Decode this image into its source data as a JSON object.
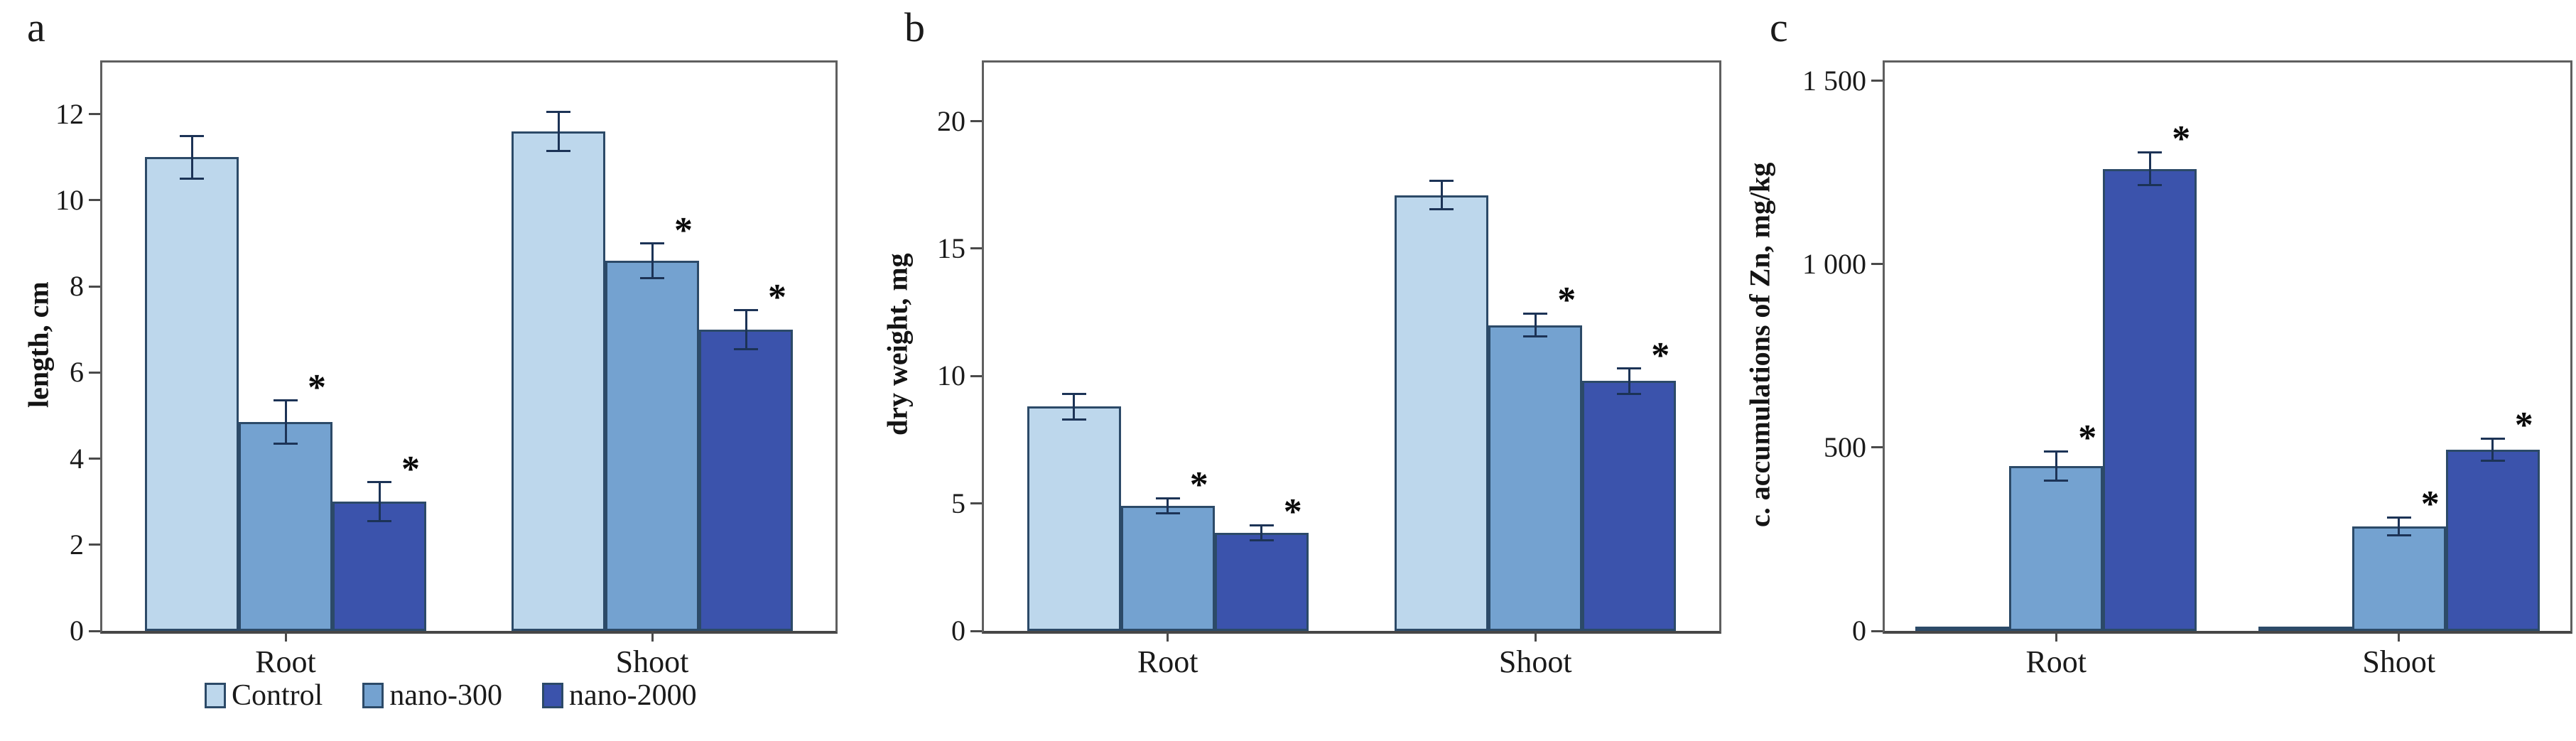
{
  "colors": {
    "control": "#bdd7ec",
    "nano300": "#74a2d0",
    "nano2000": "#3b53ac",
    "bar_border": "#2c4a68",
    "error_bar": "#1c3356",
    "axis": "#4a4a4a",
    "text": "#141414",
    "background": "#ffffff"
  },
  "legend": {
    "items": [
      {
        "label": "Control",
        "color": "#bdd7ec"
      },
      {
        "label": "nano-300",
        "color": "#74a2d0"
      },
      {
        "label": "nano-2000",
        "color": "#3b53ac"
      }
    ]
  },
  "chart_data": [
    {
      "type": "bar",
      "panel_label": "a",
      "ylabel": "length, cm",
      "xlabel": "",
      "categories": [
        "Root",
        "Shoot"
      ],
      "ylim": [
        0,
        13.2
      ],
      "yticks": [
        0,
        2,
        4,
        6,
        8,
        10,
        12
      ],
      "ytick_labels": [
        "0",
        "2",
        "4",
        "6",
        "8",
        "10",
        "12"
      ],
      "grid": false,
      "legend_position": "bottom",
      "series": [
        {
          "name": "Control",
          "color": "#bdd7ec",
          "values": [
            11.0,
            11.6
          ],
          "errors": [
            0.5,
            0.45
          ],
          "significant": [
            false,
            false
          ]
        },
        {
          "name": "nano-300",
          "color": "#74a2d0",
          "values": [
            4.85,
            8.6
          ],
          "errors": [
            0.5,
            0.4
          ],
          "significant": [
            true,
            true
          ]
        },
        {
          "name": "nano-2000",
          "color": "#3b53ac",
          "values": [
            3.0,
            7.0
          ],
          "errors": [
            0.45,
            0.45
          ],
          "significant": [
            true,
            true
          ]
        }
      ]
    },
    {
      "type": "bar",
      "panel_label": "b",
      "ylabel": "dry weight, mg",
      "xlabel": "",
      "categories": [
        "Root",
        "Shoot"
      ],
      "ylim": [
        0,
        22.3
      ],
      "yticks": [
        0,
        5,
        10,
        15,
        20
      ],
      "ytick_labels": [
        "0",
        "5",
        "10",
        "15",
        "20"
      ],
      "grid": false,
      "legend_position": "none",
      "series": [
        {
          "name": "Control",
          "color": "#bdd7ec",
          "values": [
            8.8,
            17.1
          ],
          "errors": [
            0.5,
            0.55
          ],
          "significant": [
            false,
            false
          ]
        },
        {
          "name": "nano-300",
          "color": "#74a2d0",
          "values": [
            4.9,
            12.0
          ],
          "errors": [
            0.3,
            0.45
          ],
          "significant": [
            true,
            true
          ]
        },
        {
          "name": "nano-2000",
          "color": "#3b53ac",
          "values": [
            3.85,
            9.8
          ],
          "errors": [
            0.3,
            0.5
          ],
          "significant": [
            true,
            true
          ]
        }
      ]
    },
    {
      "type": "bar",
      "panel_label": "c",
      "ylabel": "c. accumulations of Zn, mg/kg",
      "xlabel": "",
      "categories": [
        "Root",
        "Shoot"
      ],
      "ylim": [
        0,
        1550
      ],
      "yticks": [
        0,
        500,
        1000,
        1500
      ],
      "ytick_labels": [
        "0",
        "500",
        "1 000",
        "1 500"
      ],
      "grid": false,
      "legend_position": "none",
      "series": [
        {
          "name": "Control",
          "color": "#bdd7ec",
          "values": [
            12,
            8
          ],
          "errors": [
            0,
            0
          ],
          "significant": [
            false,
            false
          ]
        },
        {
          "name": "nano-300",
          "color": "#74a2d0",
          "values": [
            450,
            285
          ],
          "errors": [
            40,
            25
          ],
          "significant": [
            true,
            true
          ]
        },
        {
          "name": "nano-2000",
          "color": "#3b53ac",
          "values": [
            1260,
            495
          ],
          "errors": [
            45,
            30
          ],
          "significant": [
            true,
            true
          ]
        }
      ]
    }
  ]
}
